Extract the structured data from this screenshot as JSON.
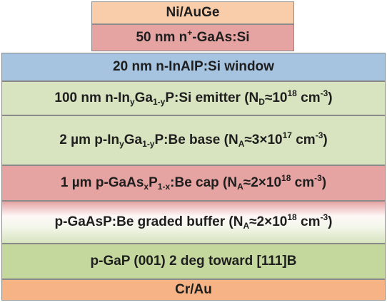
{
  "layers": [
    {
      "label": [
        "Ni/AuGe"
      ]
    },
    {
      "label": [
        "50 nm n",
        "+",
        "-GaAs:Si"
      ]
    },
    {
      "label": [
        "20 nm n-InAlP:Si window"
      ]
    },
    {
      "label": [
        "100 nm n-In",
        "y",
        "Ga",
        "1-y",
        "P:Si emitter (N",
        "D",
        "≈10",
        "18",
        " cm",
        "-3",
        ")"
      ]
    },
    {
      "label": [
        "2 µm p-In",
        "y",
        "Ga",
        "1-y",
        "P:Be base (N",
        "A",
        "≈3×10",
        "17",
        " cm",
        "-3",
        ")"
      ]
    },
    {
      "label": [
        "1 µm p-GaAs",
        "x",
        "P",
        "1-x",
        ":Be cap (N",
        "A",
        "≈2×10",
        "18",
        " cm",
        "-3",
        ")"
      ]
    },
    {
      "label": [
        "p-GaAsP:Be graded buffer (N",
        "A",
        "≈2×10",
        "18",
        " cm",
        "-3",
        ")"
      ]
    },
    {
      "label": [
        "p-GaP (001) 2 deg toward [111]B"
      ]
    },
    {
      "label": [
        "Cr/Au"
      ]
    }
  ]
}
